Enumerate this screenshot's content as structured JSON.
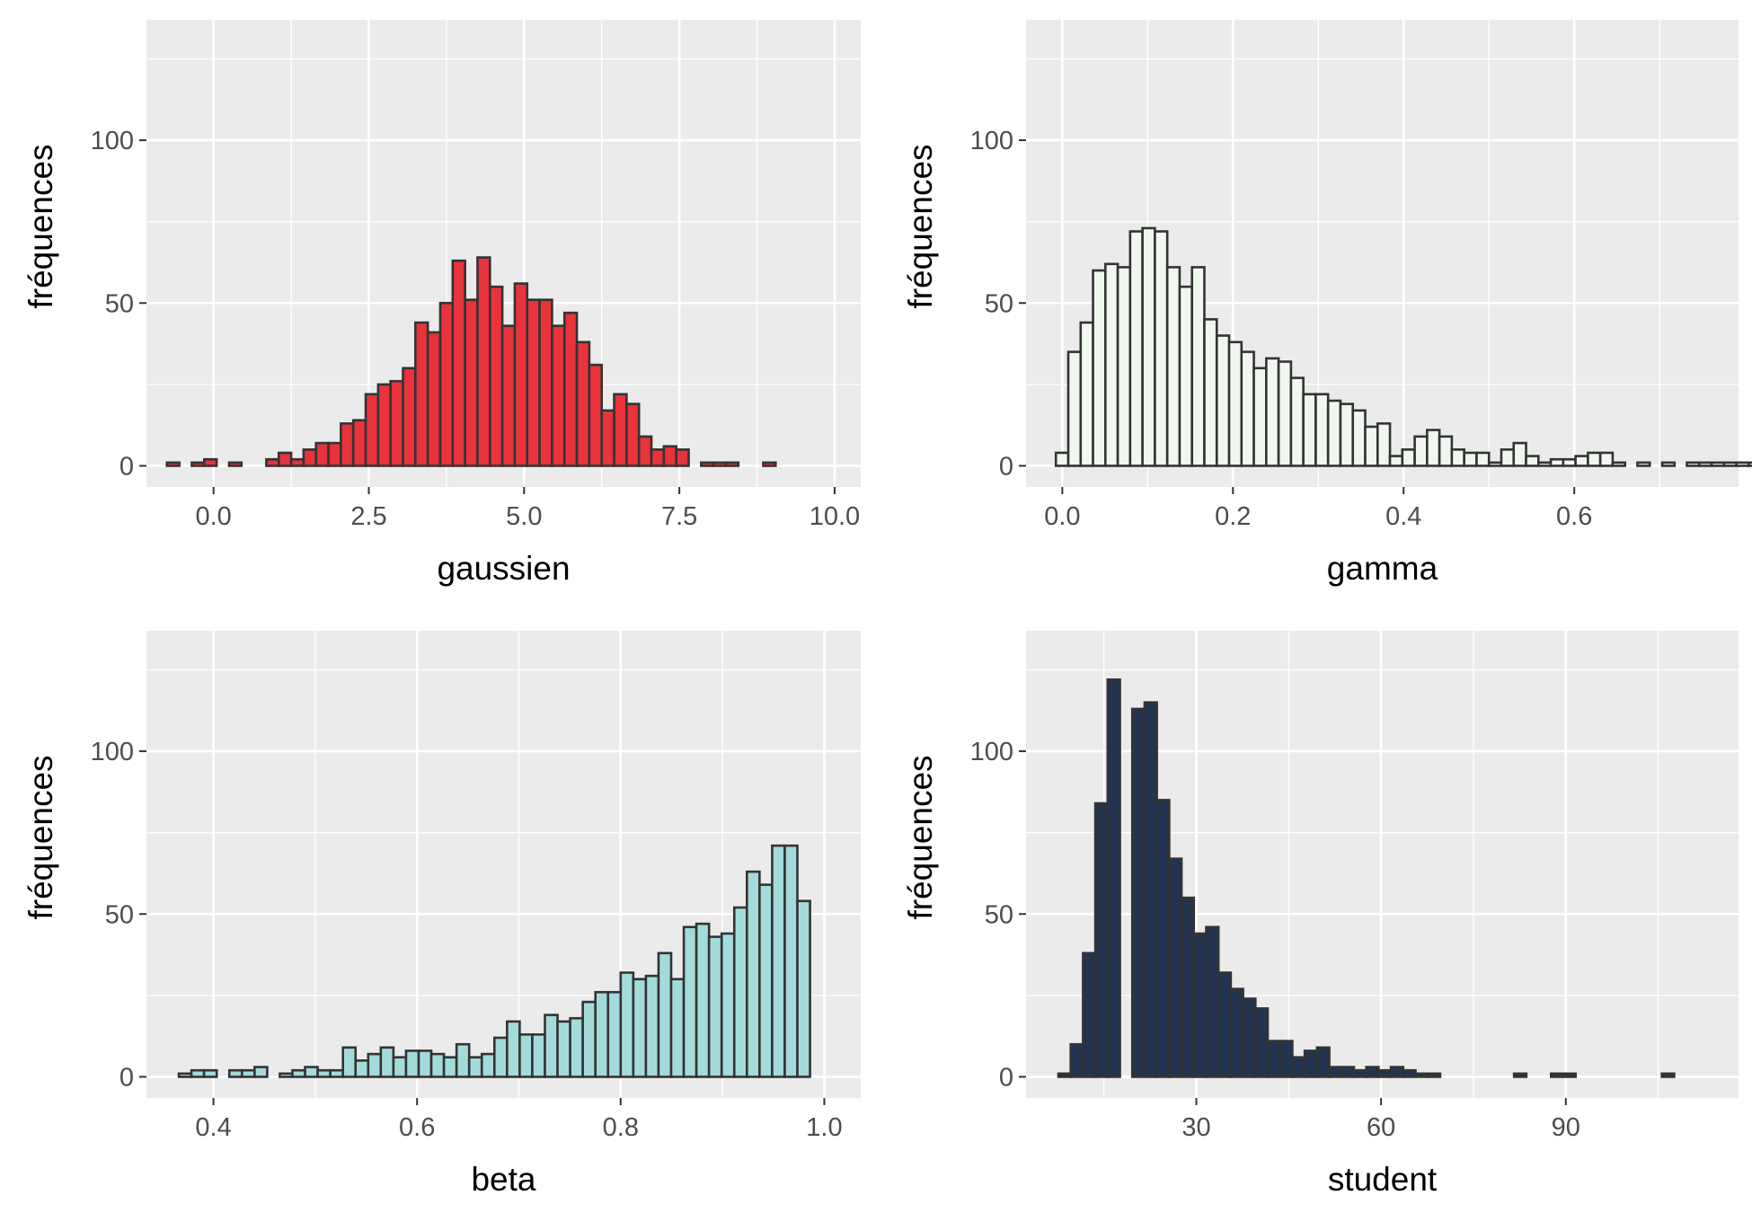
{
  "chart_data": [
    {
      "type": "bar",
      "panel": "top-left",
      "xlabel": "gaussien",
      "ylabel": "fréquences",
      "fill": "#E8323C",
      "border": "#333333",
      "xlim": [
        -1.08,
        10.42
      ],
      "ylim": [
        -6.5,
        137
      ],
      "xticks": [
        0.0,
        2.5,
        5.0,
        7.5,
        10.0
      ],
      "xtick_labels": [
        "0.0",
        "2.5",
        "5.0",
        "7.5",
        "10.0"
      ],
      "yticks": [
        0,
        50,
        100
      ],
      "ytick_labels": [
        "0",
        "50",
        "100"
      ],
      "bin_start": -0.75,
      "bin_width": 0.2,
      "values": [
        1,
        0,
        1,
        2,
        0,
        1,
        0,
        0,
        2,
        4,
        2,
        5,
        7,
        7,
        13,
        14,
        22,
        25,
        26,
        30,
        44,
        41,
        50,
        63,
        51,
        64,
        55,
        43,
        56,
        51,
        51,
        43,
        47,
        38,
        31,
        17,
        22,
        19,
        9,
        5,
        6,
        5,
        0,
        1,
        1,
        1,
        0,
        0,
        1
      ]
    },
    {
      "type": "bar",
      "panel": "top-right",
      "xlabel": "gamma",
      "ylabel": "fréquences",
      "fill": "#F0F7EF",
      "border": "#333333",
      "xlim": [
        -0.0425,
        0.7925
      ],
      "ylim": [
        -6.5,
        137
      ],
      "xticks": [
        0.0,
        0.2,
        0.4,
        0.6
      ],
      "xtick_labels": [
        "0.0",
        "0.2",
        "0.4",
        "0.6"
      ],
      "yticks": [
        0,
        50,
        100
      ],
      "ytick_labels": [
        "0",
        "50",
        "100"
      ],
      "bin_start": -0.0075,
      "bin_width": 0.0145,
      "values": [
        4,
        35,
        44,
        60,
        62,
        61,
        72,
        73,
        72,
        61,
        55,
        61,
        45,
        40,
        38,
        35,
        30,
        33,
        32,
        27,
        22,
        22,
        20,
        19,
        17,
        12,
        13,
        3,
        5,
        9,
        11,
        9,
        5,
        4,
        4,
        1,
        5,
        7,
        3,
        1,
        2,
        2,
        3,
        4,
        4,
        1,
        0,
        1,
        0,
        1,
        0,
        1,
        1,
        1,
        1,
        1,
        1,
        1,
        1,
        1,
        1
      ]
    },
    {
      "type": "bar",
      "panel": "bottom-left",
      "xlabel": "beta",
      "ylabel": "fréquences",
      "fill": "#A3DBDB",
      "border": "#333333",
      "xlim": [
        0.3342,
        1.0358
      ],
      "ylim": [
        -6.5,
        137
      ],
      "xticks": [
        0.4,
        0.6,
        0.8,
        1.0
      ],
      "xtick_labels": [
        "0.4",
        "0.6",
        "0.8",
        "1.0"
      ],
      "yticks": [
        0,
        50,
        100
      ],
      "ytick_labels": [
        "0",
        "50",
        "100"
      ],
      "bin_start": 0.366,
      "bin_width": 0.0124,
      "values": [
        1,
        2,
        2,
        0,
        2,
        2,
        3,
        0,
        1,
        2,
        3,
        2,
        2,
        9,
        5,
        7,
        9,
        6,
        8,
        8,
        7,
        6,
        10,
        6,
        7,
        12,
        17,
        13,
        13,
        19,
        17,
        18,
        23,
        26,
        26,
        32,
        30,
        31,
        38,
        30,
        46,
        47,
        43,
        44,
        52,
        63,
        59,
        71,
        71,
        54
      ]
    },
    {
      "type": "bar",
      "panel": "bottom-right",
      "xlabel": "student",
      "ylabel": "fréquences",
      "fill": "#22344F",
      "border": "#333333",
      "xlim": [
        2.35,
        118.05
      ],
      "ylim": [
        -6.5,
        137
      ],
      "xticks": [
        30,
        60,
        90
      ],
      "xtick_labels": [
        "30",
        "60",
        "90"
      ],
      "yticks": [
        0,
        50,
        100
      ],
      "ytick_labels": [
        "0",
        "50",
        "100"
      ],
      "bin_start": 7.6,
      "bin_width": 2.0,
      "values": [
        1,
        10,
        38,
        84,
        122,
        0,
        113,
        115,
        85,
        67,
        55,
        44,
        46,
        32,
        27,
        24,
        21,
        11,
        11,
        6,
        8,
        9,
        3,
        3,
        2,
        3,
        2,
        3,
        2,
        1,
        1,
        0,
        0,
        0,
        0,
        0,
        0,
        1,
        0,
        0,
        1,
        1,
        0,
        0,
        0,
        0,
        0,
        0,
        0,
        1,
        0,
        0,
        0,
        0,
        0,
        0,
        0,
        0,
        0,
        0,
        0,
        0,
        1
      ]
    }
  ]
}
